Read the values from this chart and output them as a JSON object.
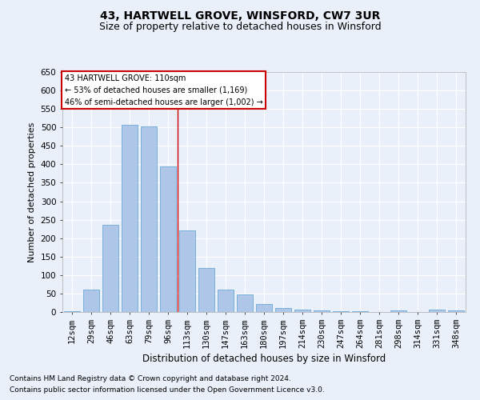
{
  "title1": "43, HARTWELL GROVE, WINSFORD, CW7 3UR",
  "title2": "Size of property relative to detached houses in Winsford",
  "xlabel": "Distribution of detached houses by size in Winsford",
  "ylabel": "Number of detached properties",
  "categories": [
    "12sqm",
    "29sqm",
    "46sqm",
    "63sqm",
    "79sqm",
    "96sqm",
    "113sqm",
    "130sqm",
    "147sqm",
    "163sqm",
    "180sqm",
    "197sqm",
    "214sqm",
    "230sqm",
    "247sqm",
    "264sqm",
    "281sqm",
    "298sqm",
    "314sqm",
    "331sqm",
    "348sqm"
  ],
  "values": [
    3,
    60,
    237,
    507,
    503,
    395,
    221,
    120,
    60,
    47,
    22,
    10,
    7,
    5,
    3,
    3,
    0,
    5,
    0,
    7,
    5
  ],
  "bar_color": "#aec6e8",
  "bar_edge_color": "#6aaad4",
  "vline_x": 5.5,
  "vline_color": "#cc0000",
  "annotation_text": "43 HARTWELL GROVE: 110sqm\n← 53% of detached houses are smaller (1,169)\n46% of semi-detached houses are larger (1,002) →",
  "annotation_box_color": "#ffffff",
  "annotation_box_edge": "#cc0000",
  "ylim": [
    0,
    650
  ],
  "yticks": [
    0,
    50,
    100,
    150,
    200,
    250,
    300,
    350,
    400,
    450,
    500,
    550,
    600,
    650
  ],
  "footnote1": "Contains HM Land Registry data © Crown copyright and database right 2024.",
  "footnote2": "Contains public sector information licensed under the Open Government Licence v3.0.",
  "bg_color": "#eaf0fa",
  "plot_bg_color": "#eaf0fa",
  "grid_color": "#ffffff",
  "title1_fontsize": 10,
  "title2_fontsize": 9,
  "xlabel_fontsize": 8.5,
  "ylabel_fontsize": 8,
  "tick_fontsize": 7.5,
  "footnote_fontsize": 6.5
}
